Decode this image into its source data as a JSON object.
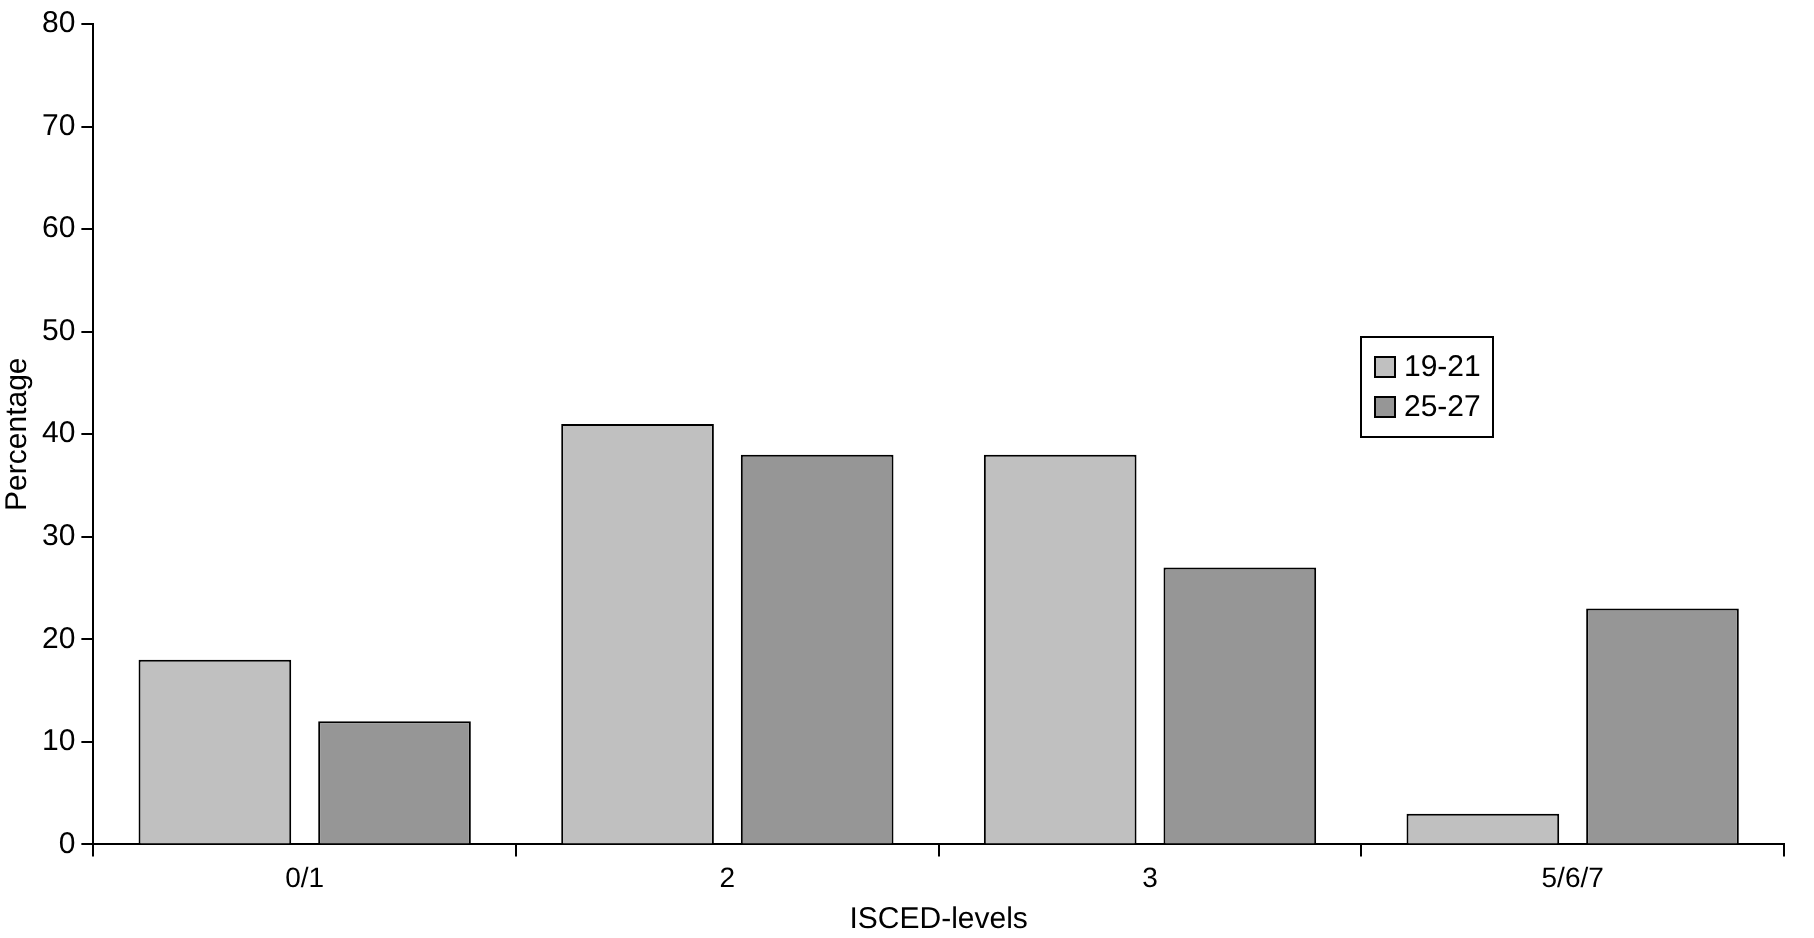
{
  "chart_data": {
    "type": "bar",
    "xlabel": "ISCED-levels",
    "ylabel": "Percentage",
    "categories": [
      "0/1",
      "2",
      "3",
      "5/6/7"
    ],
    "series": [
      {
        "name": "19-21",
        "color": "#c0c0c0",
        "values": [
          18,
          41,
          38,
          3
        ]
      },
      {
        "name": "25-27",
        "color": "#969696",
        "values": [
          12,
          38,
          27,
          23
        ]
      }
    ],
    "ylim": [
      0,
      80
    ],
    "yticks": [
      0,
      10,
      20,
      30,
      40,
      50,
      60,
      70,
      80
    ],
    "grid": false,
    "legend": "right"
  }
}
